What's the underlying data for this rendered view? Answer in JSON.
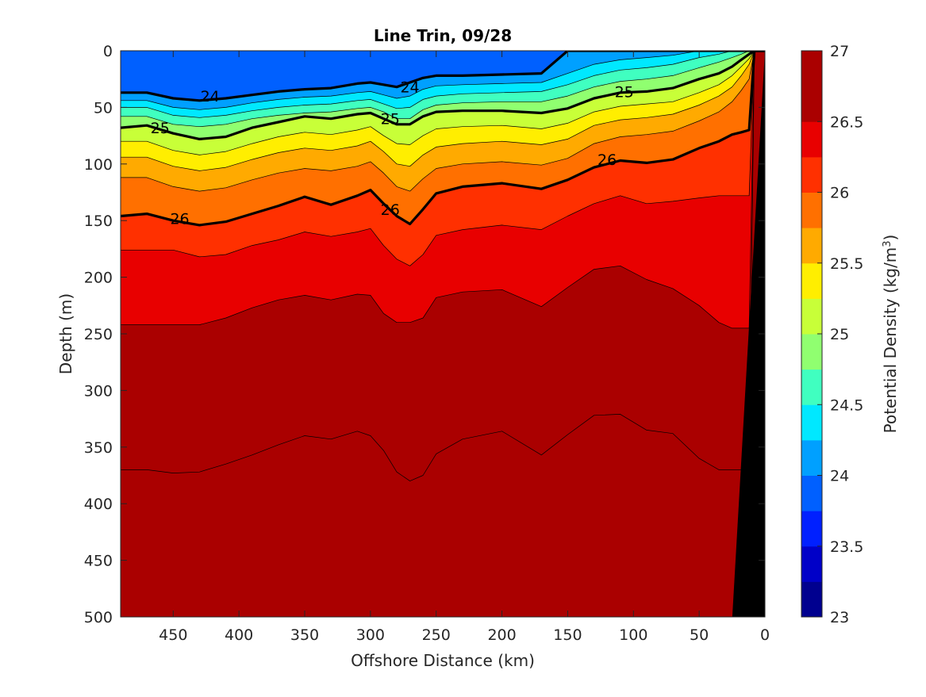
{
  "chart_data": {
    "type": "heatmap",
    "subtype": "filled-contour",
    "title": "Line Trin, 09/28",
    "xlabel": "Offshore Distance (km)",
    "ylabel": "Depth (m)",
    "xlim": [
      490,
      0
    ],
    "x_reversed": true,
    "ylim": [
      0,
      500
    ],
    "y_reversed": true,
    "x_ticks": [
      450,
      400,
      350,
      300,
      250,
      200,
      150,
      100,
      50,
      0
    ],
    "y_ticks": [
      0,
      50,
      100,
      150,
      200,
      250,
      300,
      350,
      400,
      450,
      500
    ],
    "colorbar": {
      "label": "Potential Density (kg/m",
      "label_superscript": "3",
      "label_close": ")",
      "range": [
        23,
        27
      ],
      "step": 0.25,
      "tick_labels": [
        "23",
        "23.5",
        "24",
        "24.5",
        "25",
        "25.5",
        "26",
        "26.5",
        "27"
      ],
      "colors": [
        "#00008f",
        "#0000c8",
        "#0020ff",
        "#0060ff",
        "#00a0ff",
        "#00e8ff",
        "#40ffc0",
        "#90ff70",
        "#c8ff38",
        "#ffee00",
        "#ffaa00",
        "#ff7000",
        "#ff3000",
        "#e80000",
        "#aa0000"
      ]
    },
    "x": [
      490,
      470,
      450,
      430,
      410,
      390,
      370,
      350,
      330,
      310,
      300,
      290,
      280,
      270,
      260,
      250,
      230,
      200,
      170,
      150,
      130,
      110,
      90,
      70,
      50,
      35,
      25,
      18,
      12,
      8
    ],
    "isopycnals": [
      {
        "level": 23.75,
        "depth": [
          null,
          null,
          null,
          null,
          null,
          null,
          null,
          null,
          null,
          null,
          null,
          null,
          null,
          null,
          null,
          null,
          null,
          null,
          null,
          0,
          0,
          0,
          0,
          0,
          0,
          0,
          0,
          0,
          0,
          0
        ],
        "open_top": true
      },
      {
        "level": 24.0,
        "depth": [
          37,
          37,
          42,
          44,
          42,
          39,
          36,
          34,
          33,
          29,
          28,
          30,
          32,
          28,
          24,
          22,
          22,
          21,
          20,
          0,
          0,
          0,
          0,
          0,
          0,
          0,
          0,
          0,
          0,
          0
        ]
      },
      {
        "level": 24.25,
        "depth": [
          44,
          44,
          50,
          52,
          50,
          46,
          43,
          41,
          40,
          37,
          36,
          39,
          42,
          40,
          34,
          31,
          30,
          29,
          28,
          20,
          12,
          8,
          6,
          4,
          0,
          0,
          0,
          0,
          0,
          0
        ]
      },
      {
        "level": 24.5,
        "depth": [
          50,
          50,
          57,
          59,
          57,
          53,
          50,
          48,
          47,
          44,
          43,
          47,
          51,
          50,
          43,
          40,
          38,
          37,
          36,
          30,
          22,
          17,
          15,
          12,
          6,
          3,
          0,
          0,
          0,
          0
        ]
      },
      {
        "level": 24.75,
        "depth": [
          58,
          58,
          65,
          67,
          65,
          60,
          57,
          55,
          54,
          51,
          50,
          54,
          60,
          60,
          52,
          48,
          46,
          45,
          45,
          40,
          32,
          27,
          25,
          22,
          15,
          10,
          6,
          3,
          0,
          0
        ]
      },
      {
        "level": 25.0,
        "depth": [
          68,
          66,
          73,
          78,
          76,
          68,
          63,
          58,
          60,
          56,
          55,
          60,
          65,
          65,
          58,
          54,
          53,
          53,
          55,
          51,
          42,
          37,
          36,
          33,
          25,
          20,
          14,
          8,
          3,
          0
        ]
      },
      {
        "level": 25.25,
        "depth": [
          80,
          80,
          88,
          92,
          89,
          82,
          76,
          72,
          74,
          70,
          67,
          75,
          82,
          83,
          75,
          69,
          67,
          66,
          69,
          64,
          54,
          49,
          47,
          45,
          37,
          30,
          22,
          14,
          7,
          0
        ]
      },
      {
        "level": 25.5,
        "depth": [
          94,
          94,
          102,
          106,
          103,
          96,
          90,
          86,
          88,
          84,
          80,
          89,
          100,
          102,
          92,
          85,
          82,
          80,
          83,
          78,
          66,
          61,
          59,
          56,
          48,
          40,
          32,
          22,
          12,
          0
        ]
      },
      {
        "level": 25.75,
        "depth": [
          112,
          112,
          120,
          124,
          121,
          114,
          108,
          104,
          106,
          102,
          98,
          108,
          120,
          124,
          113,
          104,
          100,
          98,
          101,
          95,
          82,
          76,
          74,
          71,
          62,
          54,
          45,
          35,
          25,
          0
        ]
      },
      {
        "level": 26.0,
        "depth": [
          146,
          144,
          150,
          154,
          151,
          144,
          137,
          129,
          136,
          128,
          123,
          135,
          146,
          153,
          140,
          126,
          120,
          117,
          122,
          114,
          103,
          97,
          99,
          96,
          86,
          80,
          74,
          72,
          70,
          0
        ]
      },
      {
        "level": 26.25,
        "depth": [
          176,
          176,
          176,
          182,
          180,
          172,
          167,
          160,
          164,
          160,
          157,
          172,
          184,
          190,
          180,
          163,
          158,
          154,
          158,
          146,
          135,
          128,
          135,
          133,
          130,
          128,
          128,
          128,
          128,
          0
        ]
      },
      {
        "level": 26.5,
        "depth": [
          242,
          242,
          242,
          242,
          236,
          227,
          220,
          216,
          220,
          215,
          216,
          232,
          240,
          240,
          236,
          218,
          213,
          211,
          226,
          209,
          193,
          190,
          202,
          210,
          225,
          240,
          245,
          245,
          245,
          0
        ]
      },
      {
        "level": 26.75,
        "depth": [
          370,
          370,
          373,
          372,
          365,
          357,
          348,
          340,
          343,
          336,
          340,
          353,
          372,
          380,
          375,
          356,
          343,
          336,
          357,
          339,
          322,
          321,
          335,
          338,
          360,
          370,
          370,
          370,
          370,
          0
        ]
      }
    ],
    "labeled_isopycnals": [
      24,
      25,
      26
    ],
    "contour_labels": [
      {
        "text": "24",
        "x": 422,
        "y": 40
      },
      {
        "text": "24",
        "x": 270,
        "y": 32
      },
      {
        "text": "25",
        "x": 460,
        "y": 68
      },
      {
        "text": "25",
        "x": 285,
        "y": 60
      },
      {
        "text": "25",
        "x": 107,
        "y": 36
      },
      {
        "text": "26",
        "x": 445,
        "y": 148
      },
      {
        "text": "26",
        "x": 285,
        "y": 140
      },
      {
        "text": "26",
        "x": 120,
        "y": 96
      }
    ],
    "seafloor": {
      "x_at_surface": 0,
      "x_at_500m": 25,
      "color": "#000000"
    }
  }
}
